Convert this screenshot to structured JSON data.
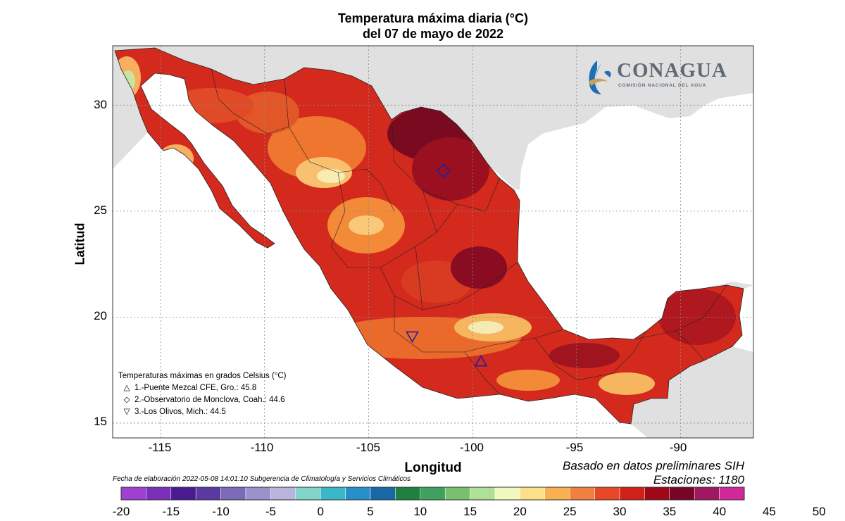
{
  "title": {
    "line1": "Temperatura máxima diaria (°C)",
    "line2": "del 07 de mayo de 2022"
  },
  "axes": {
    "xlabel": "Longitud",
    "ylabel": "Latitud",
    "x_ticks": [
      "-115",
      "-110",
      "-105",
      "-100",
      "-95",
      "-90"
    ],
    "y_ticks": [
      "30",
      "25",
      "20",
      "15"
    ],
    "x_range": [
      -117.3,
      -86.5
    ],
    "y_range": [
      14.3,
      32.8
    ]
  },
  "legend": {
    "title": "Temperaturas máximas en grados Celsius (°C)",
    "items": [
      {
        "symbol": "△",
        "text": "1.-Puente Mezcal CFE, Gro.: 45.8"
      },
      {
        "symbol": "◇",
        "text": "2.-Observatorio de Monclova, Coah.: 44.6"
      },
      {
        "symbol": "▽",
        "text": "3.-Los Olivos, Mich.: 44.5"
      }
    ]
  },
  "stations_markers": [
    {
      "name": "Puente Mezcal CFE, Gro.",
      "lon": -99.6,
      "lat": 17.9,
      "value": 45.8,
      "symbol": "triangle-up"
    },
    {
      "name": "Observatorio de Monclova, Coah.",
      "lon": -101.4,
      "lat": 26.9,
      "value": 44.6,
      "symbol": "diamond"
    },
    {
      "name": "Los Olivos, Mich.",
      "lon": -102.9,
      "lat": 19.1,
      "value": 44.5,
      "symbol": "triangle-down"
    }
  ],
  "footer": {
    "elaboration": "Fecha de elaboración 2022-05-08 14:01:10 Subgerencia de Climatología y Servicios Climáticos",
    "source": "Basado en datos preliminares SIH",
    "stations_count": "Estaciones:  1180"
  },
  "logo": {
    "name": "CONAGUA",
    "subtitle": "COMISIÓN NACIONAL DEL AGUA"
  },
  "colorbar": {
    "labels": [
      "-20",
      "-15",
      "-10",
      "-5",
      "0",
      "5",
      "10",
      "15",
      "20",
      "25",
      "30",
      "35",
      "40",
      "45",
      "50"
    ],
    "colors": [
      "#a040d0",
      "#7a30b8",
      "#4a1a90",
      "#5a3aa0",
      "#7a6ab8",
      "#9a92cc",
      "#b8b4dc",
      "#80d4c8",
      "#38b8c8",
      "#2890c8",
      "#1868a8",
      "#208040",
      "#40a060",
      "#78c070",
      "#b0e098",
      "#f0f8c0",
      "#fbe088",
      "#f8b050",
      "#f08040",
      "#e84828",
      "#d02018",
      "#a00818",
      "#780428",
      "#a01860",
      "#d02898"
    ]
  },
  "colors": {
    "land_background": "#e0e0e0",
    "ocean": "#ffffff",
    "hot": "#c41e1e",
    "very_hot": "#7a0a20",
    "warm": "#f06a2e",
    "mild": "#f8b060",
    "cool": "#f8f4c0"
  }
}
